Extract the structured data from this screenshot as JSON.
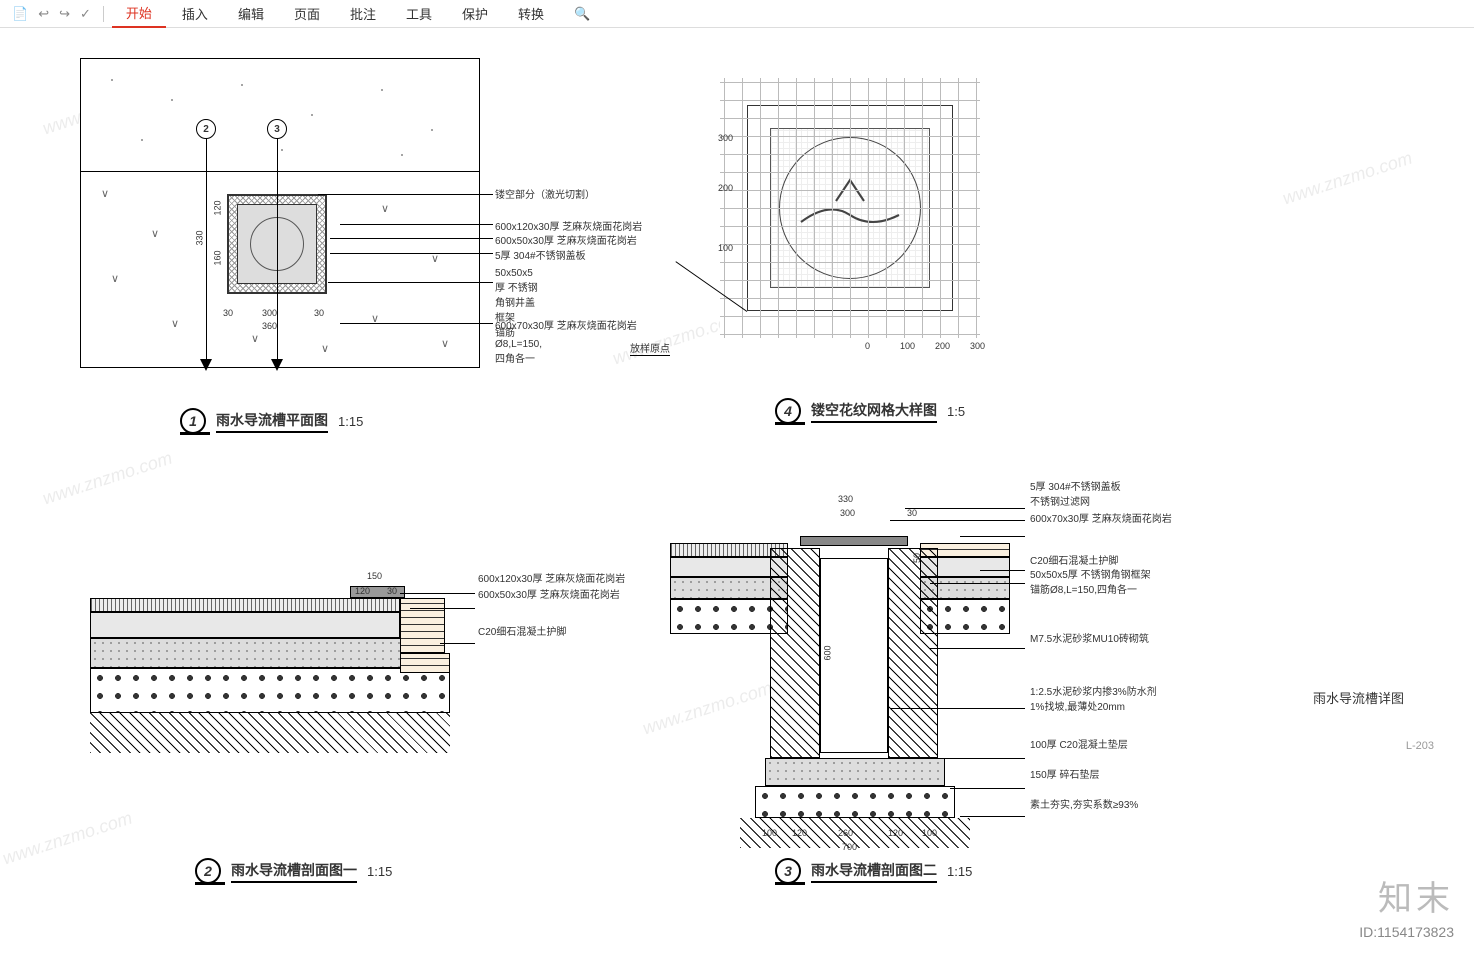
{
  "menubar": {
    "icons": [
      "📄",
      "↩",
      "↪",
      "✓"
    ],
    "items": [
      "开始",
      "插入",
      "编辑",
      "页面",
      "批注",
      "工具",
      "保护",
      "转换"
    ],
    "active_index": 0,
    "search_icon": "🔍"
  },
  "watermarks": [
    "www.znzmo.com",
    "www.znzmo.com",
    "www.znzmo.com",
    "www.znzmo.com",
    "www.znzmo.com",
    "www.znzmo.com"
  ],
  "panel1": {
    "num": "1",
    "title": "雨水导流槽平面图",
    "scale": "1:15",
    "section_marks": [
      "2",
      "3"
    ],
    "dims_v": [
      "120",
      "160",
      "330"
    ],
    "dims_h": [
      "300",
      "360"
    ],
    "dims_small": [
      "30",
      "30"
    ],
    "annotations": [
      "镂空部分（激光切割）",
      "600x120x30厚 芝麻灰烧面花岗岩",
      "600x50x30厚 芝麻灰烧面花岗岩",
      "5厚 304#不锈钢盖板",
      "50x50x5厚 不锈钢角钢井盖框架\n锚筋Ø8,L=150,四角各一",
      "600x70x30厚 芝麻灰烧面花岗岩"
    ]
  },
  "panel4": {
    "num": "4",
    "title": "镂空花纹网格大样图",
    "scale": "1:5",
    "axis_x": [
      "0",
      "100",
      "200",
      "300"
    ],
    "axis_y": [
      "100",
      "200",
      "300"
    ],
    "origin_label": "放样原点"
  },
  "panel2": {
    "num": "2",
    "title": "雨水导流槽剖面图一",
    "scale": "1:15",
    "dims": [
      "150",
      "120",
      "30"
    ],
    "annotations": [
      "600x120x30厚 芝麻灰烧面花岗岩",
      "600x50x30厚 芝麻灰烧面花岗岩",
      "C20细石混凝土护脚"
    ]
  },
  "panel3": {
    "num": "3",
    "title": "雨水导流槽剖面图二",
    "scale": "1:15",
    "dims_top": [
      "330",
      "300",
      "30"
    ],
    "dim_depth": "600",
    "dims_bot": [
      "100",
      "120",
      "260",
      "120",
      "100",
      "700"
    ],
    "dim_side": "50",
    "annotations": [
      "5厚 304#不锈钢盖板",
      "不锈钢过滤网",
      "600x70x30厚 芝麻灰烧面花岗岩",
      "C20细石混凝土护脚",
      "50x50x5厚 不锈钢角钢框架\n锚筋Ø8,L=150,四角各一",
      "M7.5水泥砂浆MU10砖砌筑",
      "1:2.5水泥砂浆内掺3%防水剂\n1%找坡,最薄处20mm",
      "100厚 C20混凝土垫层",
      "150厚 碎石垫层",
      "素土夯实,夯实系数≥93%"
    ]
  },
  "side_title": "雨水导流槽详图",
  "sheet_no": "L-203",
  "brand": {
    "cn": "知末",
    "id": "ID:1154173823"
  },
  "colors": {
    "accent": "#d32",
    "line": "#000",
    "grid": "#bbb",
    "wm": "rgba(150,150,150,.18)"
  }
}
